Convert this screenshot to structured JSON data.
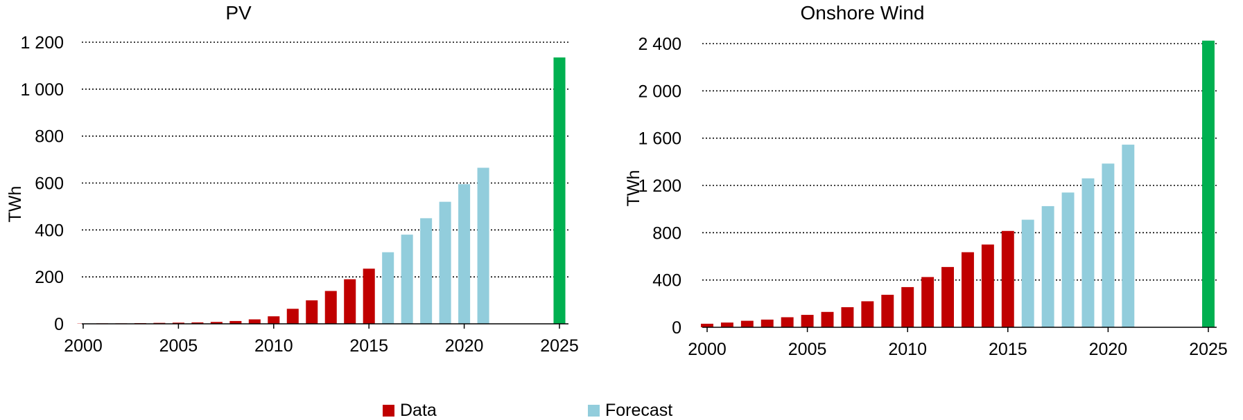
{
  "colors": {
    "data": "#c00000",
    "forecast": "#92cddc",
    "target": "#00b050",
    "grid": "#000000"
  },
  "legend": {
    "placement": "bottom-center",
    "data_label": "Data",
    "forecast_label": "Forecast"
  },
  "chart_data": [
    {
      "type": "bar",
      "title": "PV",
      "ylabel": "TWh",
      "xlabel": "",
      "ylim": [
        0,
        1200
      ],
      "yticks": [
        0,
        200,
        400,
        600,
        800,
        1000,
        1200
      ],
      "ytick_labels": [
        "0",
        "200",
        "400",
        "600",
        "800",
        "1 000",
        "1 200"
      ],
      "xlim": [
        2000,
        2025
      ],
      "xticks": [
        "2000",
        "2005",
        "2010",
        "2015",
        "2020",
        "2025"
      ],
      "grid": true,
      "series": [
        {
          "name": "Data",
          "x": [
            2000,
            2001,
            2002,
            2003,
            2004,
            2005,
            2006,
            2007,
            2008,
            2009,
            2010,
            2011,
            2012,
            2013,
            2014,
            2015
          ],
          "values": [
            1,
            2,
            2,
            3,
            4,
            5,
            6,
            8,
            12,
            19,
            32,
            64,
            100,
            140,
            190,
            235
          ]
        },
        {
          "name": "Forecast",
          "x": [
            2016,
            2017,
            2018,
            2019,
            2020,
            2021
          ],
          "values": [
            305,
            380,
            450,
            520,
            595,
            665
          ]
        },
        {
          "x": [
            2025
          ],
          "values": [
            1135
          ]
        }
      ]
    },
    {
      "type": "bar",
      "title": "Onshore Wind",
      "ylabel": "TWh",
      "xlabel": "",
      "ylim": [
        0,
        2400
      ],
      "yticks": [
        0,
        400,
        800,
        1200,
        1600,
        2000,
        2400
      ],
      "ytick_labels": [
        "0",
        "400",
        "800",
        "1 200",
        "1 600",
        "2 000",
        "2 400"
      ],
      "xlim": [
        2000,
        2025
      ],
      "xticks": [
        "2000",
        "2005",
        "2010",
        "2015",
        "2020",
        "2025"
      ],
      "grid": true,
      "series": [
        {
          "name": "Data",
          "x": [
            2000,
            2001,
            2002,
            2003,
            2004,
            2005,
            2006,
            2007,
            2008,
            2009,
            2010,
            2011,
            2012,
            2013,
            2014,
            2015
          ],
          "values": [
            30,
            40,
            55,
            65,
            85,
            105,
            130,
            170,
            220,
            275,
            340,
            425,
            510,
            635,
            700,
            815
          ]
        },
        {
          "name": "Forecast",
          "x": [
            2016,
            2017,
            2018,
            2019,
            2020,
            2021
          ],
          "values": [
            910,
            1025,
            1140,
            1260,
            1385,
            1545
          ]
        },
        {
          "x": [
            2025
          ],
          "values": [
            2425
          ]
        }
      ]
    }
  ]
}
